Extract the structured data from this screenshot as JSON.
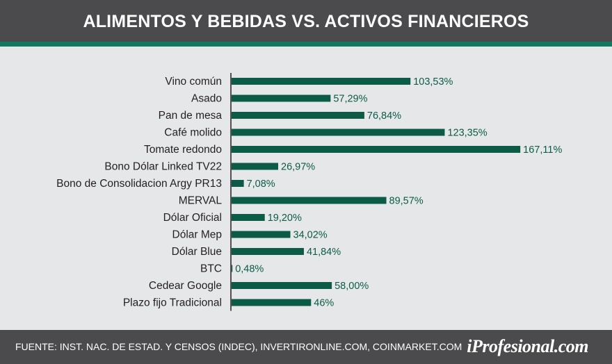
{
  "header": {
    "title": "ALIMENTOS Y BEBIDAS VS. ACTIVOS FINANCIEROS"
  },
  "footer": {
    "source": "FUENTE: INST. NAC. DE ESTAD. Y CENSOS (INDEC), INVERTIRONLINE.COM, COINMARKET.COM",
    "brand": "iProfesional.com"
  },
  "colors": {
    "bar": "#0b5b47",
    "header_bg": "#4b4b4d",
    "accent": "#0f7a5f",
    "background": "#e6e7e8"
  },
  "chart_data": {
    "type": "bar",
    "orientation": "horizontal",
    "categories": [
      "Vino común",
      "Asado",
      "Pan de mesa",
      "Café molido",
      "Tomate redondo",
      "Bono Dólar Linked TV22",
      "Bono de Consolidacion Argy PR13",
      "MERVAL",
      "Dólar Oficial",
      "Dólar Mep",
      "Dólar Blue",
      "BTC",
      "Cedear Google",
      "Plazo fijo Tradicional"
    ],
    "values": [
      103.53,
      57.29,
      76.84,
      123.35,
      167.11,
      26.97,
      7.08,
      89.57,
      19.2,
      34.02,
      41.84,
      0.48,
      58.0,
      46
    ],
    "value_labels": [
      "103,53%",
      "57,29%",
      "76,84%",
      "123,35%",
      "167,11%",
      "26,97%",
      "7,08%",
      "89,57%",
      "19,20%",
      "34,02%",
      "41,84%",
      "0,48%",
      "58,00%",
      "46%"
    ],
    "xlim": [
      0,
      180
    ]
  }
}
